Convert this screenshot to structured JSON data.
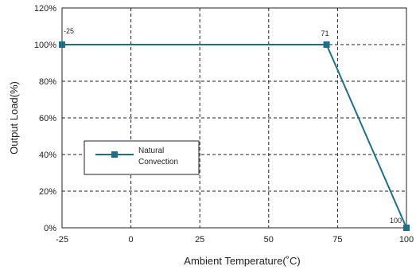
{
  "chart_data": {
    "type": "line",
    "xlabel": "Ambient Temperature(˚C)",
    "ylabel": "Output Load(%)",
    "x_ticks": [
      "-25",
      "0",
      "25",
      "50",
      "75",
      "100"
    ],
    "y_ticks": [
      "0%",
      "20%",
      "40%",
      "60%",
      "80%",
      "100%",
      "120%"
    ],
    "xlim": [
      -25,
      100
    ],
    "ylim": [
      0,
      120
    ],
    "grid": true,
    "legend_position": "left",
    "series": [
      {
        "name": "Natural Convection",
        "legend_lines": [
          "Natural",
          "Convection"
        ],
        "color": "#1f6f8b",
        "points": [
          {
            "x": -25,
            "y": 100
          },
          {
            "x": 71,
            "y": 100
          },
          {
            "x": 100,
            "y": 0
          }
        ]
      }
    ],
    "annotations": [
      {
        "text": "-25",
        "x": -25,
        "y": 100
      },
      {
        "text": "71",
        "x": 71,
        "y": 100
      },
      {
        "text": "100",
        "x": 100,
        "y": 0
      }
    ]
  }
}
